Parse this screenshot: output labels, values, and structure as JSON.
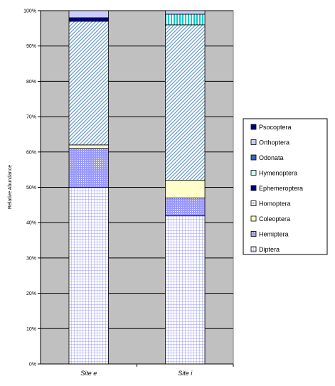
{
  "chart_data": {
    "type": "bar",
    "stacked": true,
    "categories": [
      "Site e",
      "Site i"
    ],
    "ylabel": "Relative Abundance",
    "ylim": [
      0,
      1
    ],
    "yticks": [
      "0%",
      "10%",
      "20%",
      "30%",
      "40%",
      "50%",
      "60%",
      "70%",
      "80%",
      "90%",
      "100%"
    ],
    "grid": true,
    "legend_position": "right",
    "series": [
      {
        "name": "Diptera",
        "color": "#9999ff",
        "pattern": "grid",
        "values": [
          0.5,
          0.42
        ]
      },
      {
        "name": "Hemiptera",
        "color": "#9999ff",
        "pattern": "dots",
        "values": [
          0.11,
          0.05
        ]
      },
      {
        "name": "Coleoptera",
        "color": "#ffffcc",
        "pattern": "solid",
        "values": [
          0.01,
          0.05
        ]
      },
      {
        "name": "Homoptera",
        "color": "#9999ff",
        "pattern": "dense-dots",
        "values": [
          0.0,
          0.0
        ]
      },
      {
        "name": "Hymenoptera",
        "color": "#ccffff",
        "pattern": "solid",
        "values": [
          0.0,
          0.0
        ]
      },
      {
        "name": "Orthoptera",
        "color": "#99ccff",
        "pattern": "diagonal",
        "values": [
          0.35,
          0.44
        ]
      },
      {
        "name": "Ephemeroptera",
        "color": "#000080",
        "pattern": "solid",
        "values": [
          0.01,
          0.0
        ]
      },
      {
        "name": "Hymenoptera",
        "color": "#00cccc",
        "pattern": "vertical",
        "values": [
          0.0,
          0.03
        ]
      },
      {
        "name": "Odonata",
        "color": "#3366cc",
        "pattern": "solid",
        "values": [
          0.0,
          0.0
        ]
      },
      {
        "name": "Orthoptera",
        "color": "#ccccff",
        "pattern": "solid",
        "values": [
          0.02,
          0.01
        ]
      },
      {
        "name": "Psocoptera",
        "color": "#000080",
        "pattern": "solid",
        "values": [
          0.0,
          0.0
        ]
      }
    ],
    "legend": [
      {
        "label": "Psocoptera",
        "color": "#000080",
        "pattern": "solid"
      },
      {
        "label": "Orthoptera",
        "color": "#ccccff",
        "pattern": "solid"
      },
      {
        "label": "Odonata",
        "color": "#3366cc",
        "pattern": "solid"
      },
      {
        "label": "Hymenoptera",
        "color": "#ccffff",
        "pattern": "solid"
      },
      {
        "label": "Ephemeroptera",
        "color": "#000080",
        "pattern": "solid"
      },
      {
        "label": "Homoptera",
        "color": "#9999ff",
        "pattern": "dense-dots"
      },
      {
        "label": "Coleoptera",
        "color": "#ffffcc",
        "pattern": "solid"
      },
      {
        "label": "Hemiptera",
        "color": "#9999ff",
        "pattern": "dots"
      },
      {
        "label": "Diptera",
        "color": "#9999ff",
        "pattern": "grid"
      }
    ]
  },
  "colors": {
    "plot_background": "#c0c0c0",
    "gridline": "#000000"
  }
}
